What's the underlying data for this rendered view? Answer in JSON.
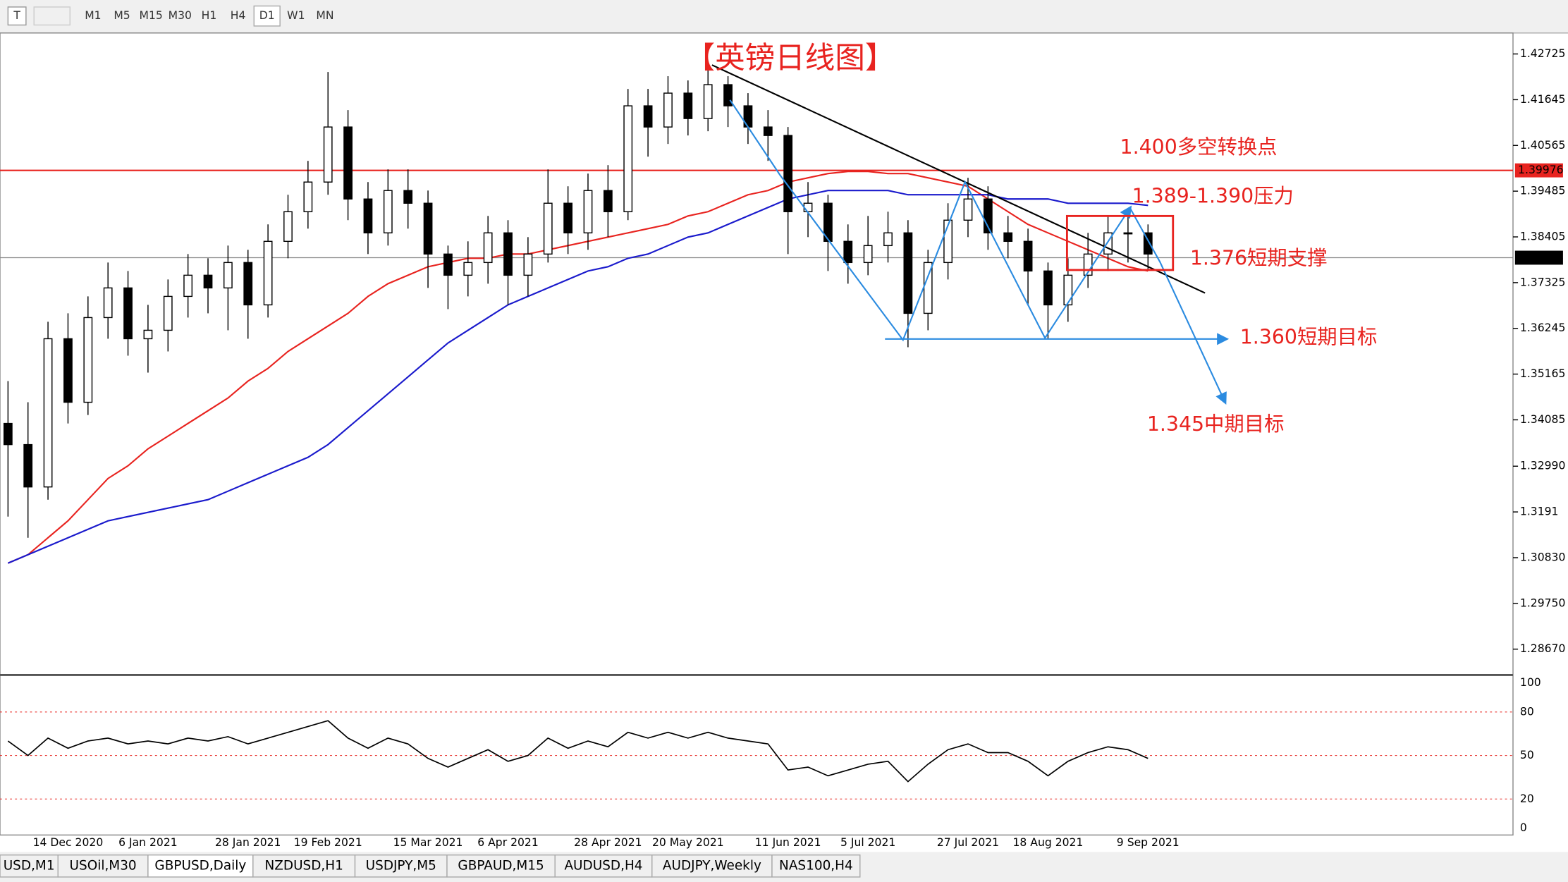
{
  "toolbar": {
    "buttons": [
      "M1",
      "M5",
      "M15",
      "M30",
      "H1",
      "H4",
      "D1",
      "W1",
      "MN"
    ]
  },
  "chart_data": {
    "type": "candlestick",
    "categories": [
      null,
      null,
      null,
      "14 Dec 2020",
      null,
      null,
      null,
      "6 Jan 2021",
      null,
      null,
      null,
      null,
      "28 Jan 2021",
      null,
      null,
      null,
      "19 Feb 2021",
      null,
      null,
      null,
      null,
      "15 Mar 2021",
      null,
      null,
      null,
      "6 Apr 2021",
      null,
      null,
      null,
      null,
      "28 Apr 2021",
      null,
      null,
      null,
      "20 May 2021",
      null,
      null,
      null,
      null,
      "11 Jun 2021",
      null,
      null,
      null,
      "5 Jul 2021",
      null,
      null,
      null,
      null,
      "27 Jul 2021",
      null,
      null,
      null,
      "18 Aug 2021",
      null,
      null,
      null,
      null,
      "9 Sep 2021"
    ],
    "open": [
      1.34,
      1.335,
      1.325,
      1.36,
      1.345,
      1.365,
      1.372,
      1.36,
      1.362,
      1.37,
      1.375,
      1.372,
      1.378,
      1.368,
      1.383,
      1.39,
      1.397,
      1.41,
      1.393,
      1.385,
      1.395,
      1.392,
      1.38,
      1.375,
      1.378,
      1.385,
      1.375,
      1.38,
      1.392,
      1.385,
      1.395,
      1.39,
      1.415,
      1.41,
      1.418,
      1.412,
      1.42,
      1.415,
      1.41,
      1.408,
      1.39,
      1.392,
      1.383,
      1.378,
      1.382,
      1.385,
      1.366,
      1.378,
      1.388,
      1.393,
      1.385,
      1.383,
      1.376,
      1.368,
      1.375,
      1.38,
      1.385,
      1.385
    ],
    "high": [
      1.35,
      1.345,
      1.364,
      1.366,
      1.37,
      1.378,
      1.376,
      1.368,
      1.374,
      1.38,
      1.379,
      1.382,
      1.381,
      1.387,
      1.394,
      1.402,
      1.423,
      1.414,
      1.397,
      1.4,
      1.4,
      1.395,
      1.382,
      1.383,
      1.389,
      1.388,
      1.384,
      1.4,
      1.396,
      1.399,
      1.401,
      1.419,
      1.419,
      1.422,
      1.421,
      1.425,
      1.422,
      1.418,
      1.414,
      1.41,
      1.397,
      1.394,
      1.387,
      1.389,
      1.39,
      1.388,
      1.381,
      1.392,
      1.398,
      1.396,
      1.389,
      1.386,
      1.378,
      1.379,
      1.385,
      1.389,
      1.389,
      1.387
    ],
    "low": [
      1.318,
      1.313,
      1.322,
      1.34,
      1.342,
      1.36,
      1.356,
      1.352,
      1.357,
      1.365,
      1.366,
      1.362,
      1.36,
      1.365,
      1.379,
      1.386,
      1.394,
      1.388,
      1.38,
      1.382,
      1.386,
      1.372,
      1.367,
      1.37,
      1.373,
      1.368,
      1.37,
      1.378,
      1.38,
      1.381,
      1.384,
      1.388,
      1.403,
      1.406,
      1.408,
      1.409,
      1.41,
      1.406,
      1.402,
      1.38,
      1.384,
      1.376,
      1.373,
      1.375,
      1.378,
      1.358,
      1.362,
      1.374,
      1.384,
      1.381,
      1.379,
      1.368,
      1.36,
      1.364,
      1.372,
      1.376,
      1.378,
      1.376
    ],
    "close": [
      1.335,
      1.325,
      1.36,
      1.345,
      1.365,
      1.372,
      1.36,
      1.362,
      1.37,
      1.375,
      1.372,
      1.378,
      1.368,
      1.383,
      1.39,
      1.397,
      1.41,
      1.393,
      1.385,
      1.395,
      1.392,
      1.38,
      1.375,
      1.378,
      1.385,
      1.375,
      1.38,
      1.392,
      1.385,
      1.395,
      1.39,
      1.415,
      1.41,
      1.418,
      1.412,
      1.42,
      1.415,
      1.41,
      1.408,
      1.39,
      1.392,
      1.383,
      1.378,
      1.382,
      1.385,
      1.366,
      1.378,
      1.388,
      1.393,
      1.385,
      1.383,
      1.376,
      1.368,
      1.375,
      1.38,
      1.385,
      1.385,
      1.38
    ],
    "series": [
      {
        "color": "#e8231f",
        "values": [
          1.307,
          1.309,
          1.313,
          1.317,
          1.322,
          1.327,
          1.33,
          1.334,
          1.337,
          1.34,
          1.343,
          1.346,
          1.35,
          1.353,
          1.357,
          1.36,
          1.363,
          1.366,
          1.37,
          1.373,
          1.375,
          1.377,
          1.378,
          1.379,
          1.379,
          1.38,
          1.38,
          1.381,
          1.382,
          1.383,
          1.384,
          1.385,
          1.386,
          1.387,
          1.389,
          1.39,
          1.392,
          1.394,
          1.395,
          1.397,
          1.398,
          1.399,
          1.3995,
          1.3995,
          1.399,
          1.399,
          1.398,
          1.397,
          1.396,
          1.393,
          1.39,
          1.387,
          1.385,
          1.383,
          1.381,
          1.379,
          1.377,
          1.376
        ]
      },
      {
        "color": "#1a1acc",
        "values": [
          1.307,
          1.309,
          1.311,
          1.313,
          1.315,
          1.317,
          1.318,
          1.319,
          1.32,
          1.321,
          1.322,
          1.324,
          1.326,
          1.328,
          1.33,
          1.332,
          1.335,
          1.339,
          1.343,
          1.347,
          1.351,
          1.355,
          1.359,
          1.362,
          1.365,
          1.368,
          1.37,
          1.372,
          1.374,
          1.376,
          1.377,
          1.379,
          1.38,
          1.382,
          1.384,
          1.385,
          1.387,
          1.389,
          1.391,
          1.393,
          1.394,
          1.395,
          1.395,
          1.395,
          1.395,
          1.394,
          1.394,
          1.394,
          1.394,
          1.394,
          1.393,
          1.393,
          1.393,
          1.392,
          1.392,
          1.392,
          1.392,
          1.3915
        ]
      }
    ],
    "ylim": [
      1.2813,
      1.4322
    ],
    "yticks": [
      1.42725,
      1.41645,
      1.40565,
      1.39485,
      1.38405,
      1.37325,
      1.36245,
      1.35165,
      1.34085,
      {
        "value": 1.3299,
        "label": "1.32990"
      },
      1.3191,
      {
        "value": 1.3083,
        "label": "1.30830"
      },
      {
        "value": 1.2975,
        "label": "1.29750"
      },
      {
        "value": 1.2867,
        "label": "1.28670"
      }
    ],
    "price_lines": [
      {
        "value": 1.39976,
        "color": "#e8231f"
      },
      {
        "value": 1.37914,
        "color": "#888888"
      }
    ],
    "annotations": [
      "【英镑日线图】",
      "1.400多空转换点",
      "1.389-1.390压力",
      "1.376短期支撑",
      "1.360短期目标",
      "1.345中期目标"
    ],
    "indicator": {
      "values": [
        60,
        50,
        62,
        55,
        60,
        62,
        58,
        60,
        58,
        62,
        60,
        63,
        58,
        62,
        66,
        70,
        74,
        62,
        55,
        62,
        58,
        48,
        42,
        48,
        54,
        46,
        50,
        62,
        55,
        60,
        56,
        66,
        62,
        66,
        62,
        66,
        62,
        60,
        58,
        40,
        42,
        36,
        40,
        44,
        46,
        32,
        44,
        54,
        58,
        52,
        52,
        46,
        36,
        46,
        52,
        56,
        54,
        48
      ],
      "ylim": [
        0,
        100
      ],
      "yticks": [
        100,
        80,
        50,
        20,
        0
      ],
      "color": "#000000"
    }
  },
  "tabs": [
    "USD,M1",
    "USOil,M30",
    "GBPUSD,Daily",
    "NZDUSD,H1",
    "USDJPY,M5",
    "GBPAUD,M15",
    "AUDUSD,H4",
    "AUDJPY,Weekly",
    "NAS100,H4"
  ]
}
